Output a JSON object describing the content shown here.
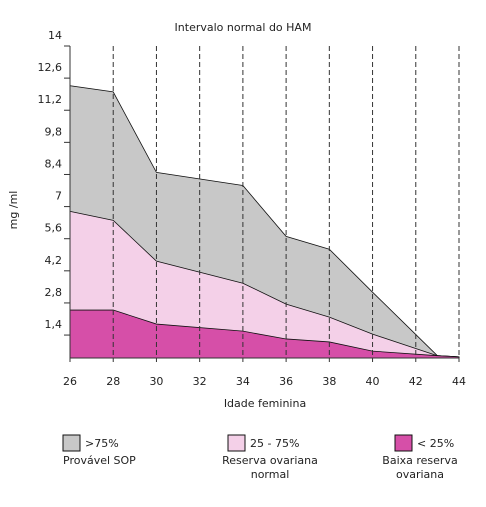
{
  "chart_data": {
    "type": "area",
    "title": "Intervalo normal do HAM",
    "xlabel": "Idade feminina",
    "ylabel": "mg /ml",
    "x": [
      26,
      28,
      30,
      34,
      36,
      38,
      40,
      43,
      44
    ],
    "series": [
      {
        "name": ">75%",
        "description": [
          "Provável SOP"
        ],
        "color": "#c8c8c8",
        "values": [
          12.27,
          12.0,
          8.49,
          7.92,
          5.7,
          5.14,
          3.27,
          0.5,
          0.45
        ]
      },
      {
        "name": "25 - 75%",
        "description": [
          "Reserva ovariana",
          "normal"
        ],
        "color": "#f4d0e8",
        "values": [
          6.79,
          6.4,
          4.62,
          3.66,
          2.75,
          2.18,
          1.44,
          0.5,
          0.45
        ]
      },
      {
        "name": "< 25%",
        "description": [
          "Baixa reserva",
          "ovariana"
        ],
        "color": "#d64fa8",
        "values": [
          2.49,
          2.49,
          1.88,
          1.57,
          1.23,
          1.1,
          0.7,
          0.5,
          0.45
        ]
      }
    ],
    "xlim": [
      26,
      44
    ],
    "xticks": [
      26,
      28,
      30,
      32,
      34,
      36,
      38,
      40,
      42,
      44
    ],
    "ylim": [
      0.4,
      14
    ],
    "yticks": [
      {
        "value": 1.4,
        "label": "1,4"
      },
      {
        "value": 2.8,
        "label": "2,8"
      },
      {
        "value": 4.2,
        "label": "4,2"
      },
      {
        "value": 5.6,
        "label": "5,6"
      },
      7,
      {
        "value": 8.4,
        "label": "8,4"
      },
      {
        "value": 9.8,
        "label": "9,8"
      },
      {
        "value": 11.2,
        "label": "11,2"
      },
      {
        "value": 12.6,
        "label": "12,6"
      },
      14
    ],
    "grid": "x"
  }
}
